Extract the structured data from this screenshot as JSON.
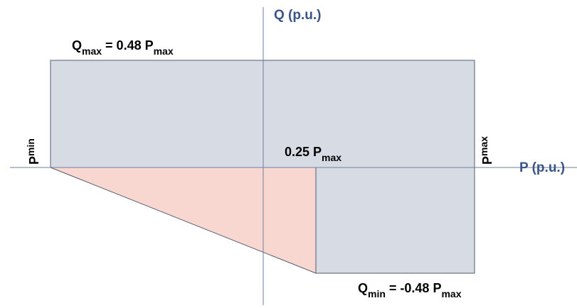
{
  "axes": {
    "q_label": "Q (p.u.)",
    "p_label": "P (p.u.)"
  },
  "labels": {
    "qmax": {
      "main": "Q",
      "sub": "max",
      "mid": " = 0.48 P",
      "tail": "max"
    },
    "qmin": {
      "main": "Q",
      "sub": "min",
      "mid": " = -0.48 P",
      "tail": "max"
    },
    "pmin": {
      "main": "P",
      "sub": "min"
    },
    "pmax": {
      "main": "P",
      "sub": "max"
    },
    "p025": {
      "main": "0.25 P",
      "sub": "max"
    }
  },
  "colors": {
    "axis_text": "#3b5488",
    "label_text": "#000000",
    "region_fill": "#d7dce4",
    "triangle_fill": "#f8d7d1",
    "outline": "#505b6d",
    "axis_line": "#6f7f9c"
  }
}
